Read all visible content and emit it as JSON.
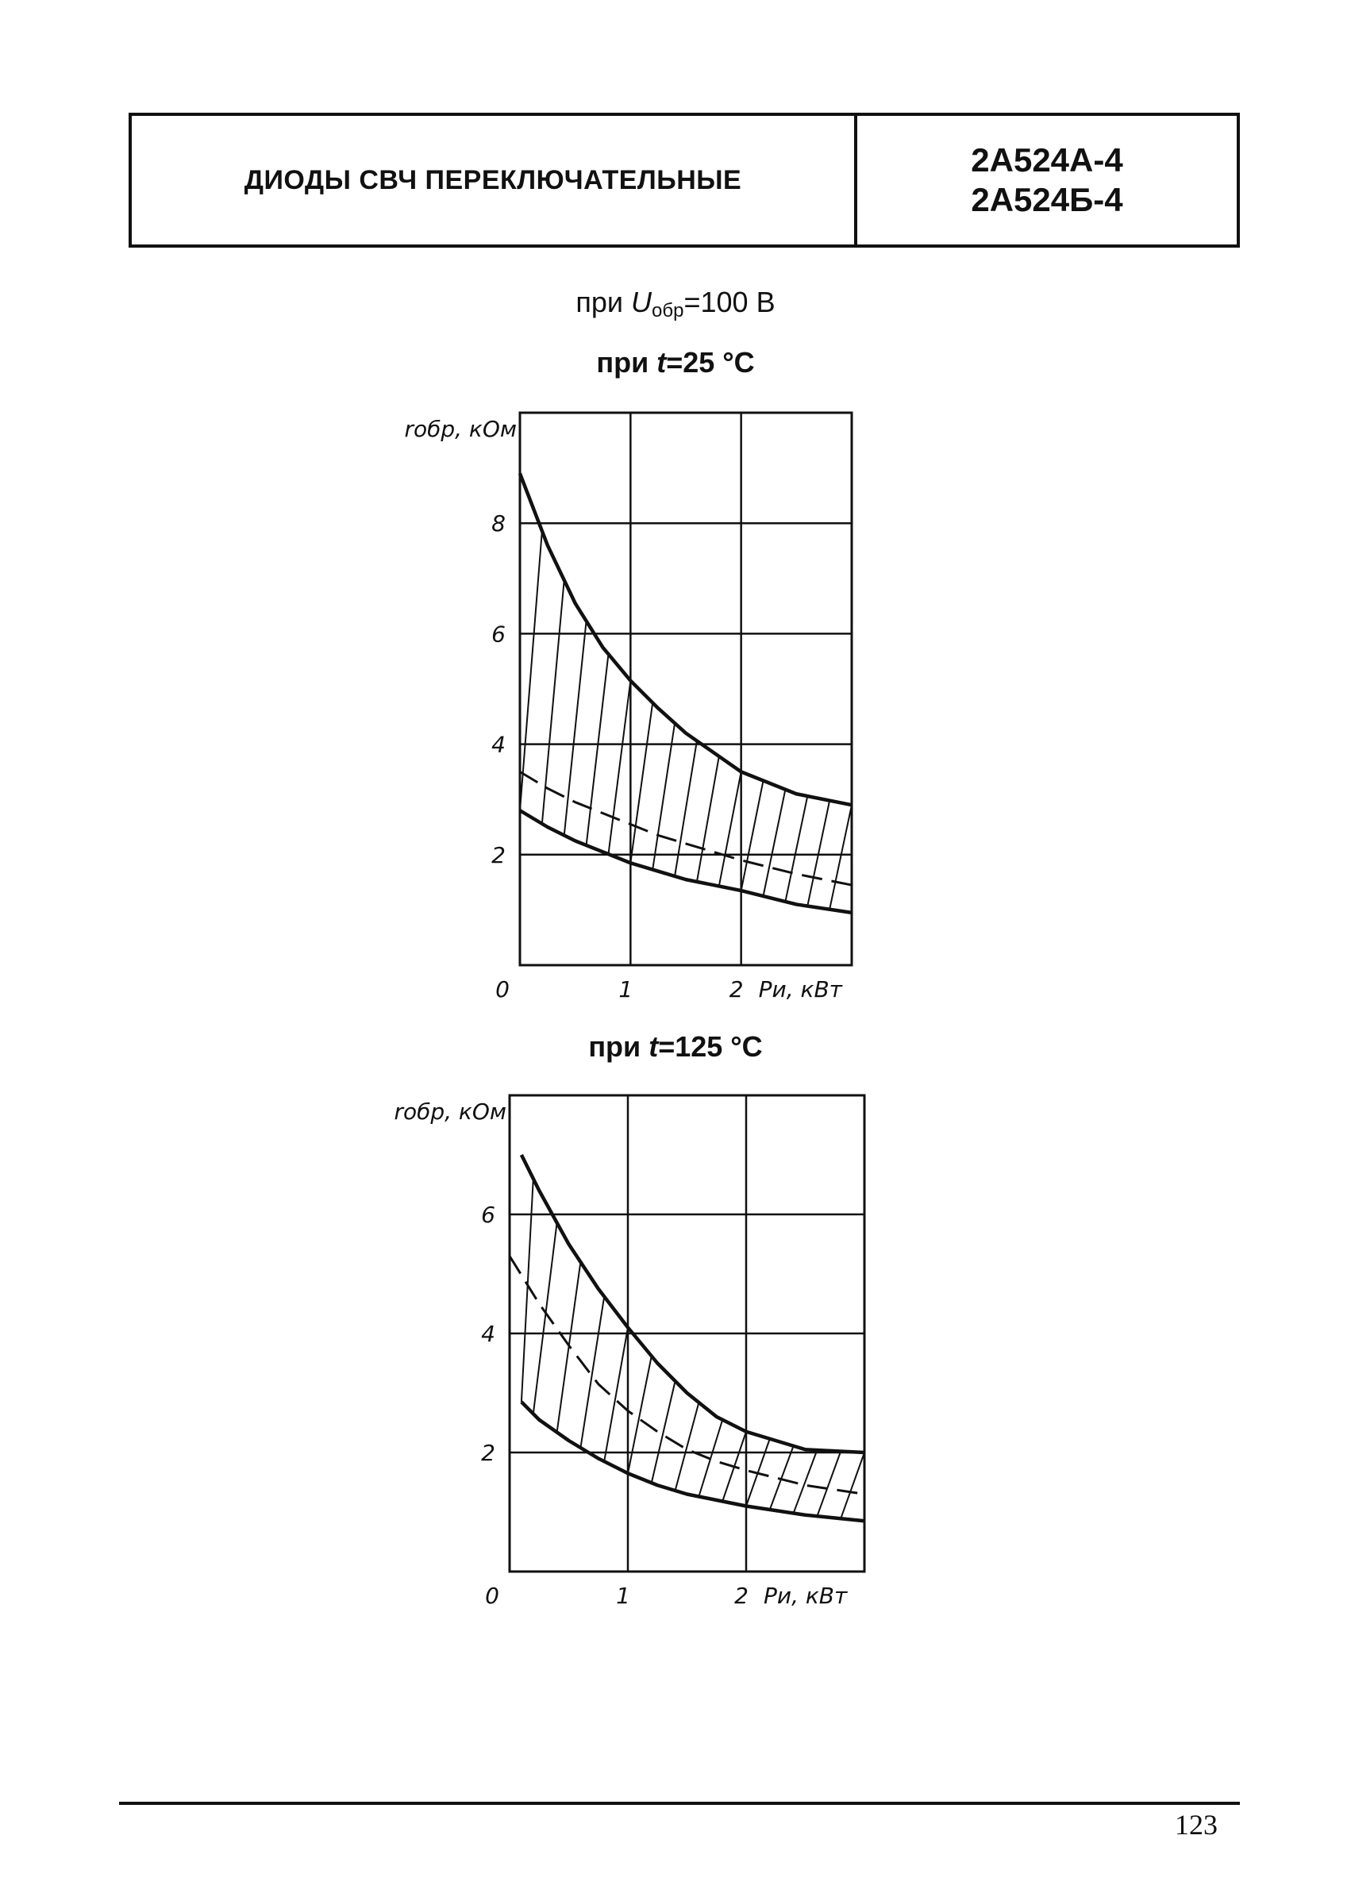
{
  "header": {
    "title": "ДИОДЫ СВЧ ПЕРЕКЛЮЧАТЕЛЬНЫЕ",
    "part1": "2А524А-4",
    "part2": "2А524Б-4"
  },
  "condition": {
    "prefix": "при ",
    "symbol": "U",
    "subscript": "обр",
    "suffix": "=100 В"
  },
  "chart_data": [
    {
      "type": "line",
      "title_prefix": "при ",
      "title_symbol": "t",
      "title_suffix": "=25 °C",
      "ylabel": "rобр, кОм",
      "xlabel": "Pи, кВт",
      "xlim": [
        0,
        3
      ],
      "ylim": [
        0,
        10
      ],
      "x_ticks": [
        "0",
        "1",
        "2"
      ],
      "y_ticks": [
        "2",
        "4",
        "6",
        "8"
      ],
      "grid": true,
      "hatched_region": "between upper and lower curves",
      "series": [
        {
          "style": "solid",
          "x": [
            0,
            0.25,
            0.5,
            0.75,
            1.0,
            1.25,
            1.5,
            1.75,
            2.0,
            2.5,
            3.0
          ],
          "y": [
            8.9,
            7.6,
            6.55,
            5.75,
            5.15,
            4.65,
            4.2,
            3.85,
            3.5,
            3.1,
            2.9
          ]
        },
        {
          "style": "dashed",
          "x": [
            0,
            0.25,
            0.5,
            0.75,
            1.0,
            1.25,
            1.5,
            1.75,
            2.0,
            2.5,
            3.0
          ],
          "y": [
            3.5,
            3.2,
            2.95,
            2.75,
            2.55,
            2.35,
            2.2,
            2.05,
            1.9,
            1.65,
            1.45
          ]
        },
        {
          "style": "solid",
          "x": [
            0,
            0.25,
            0.5,
            0.75,
            1.0,
            1.25,
            1.5,
            1.75,
            2.0,
            2.5,
            3.0
          ],
          "y": [
            2.8,
            2.5,
            2.25,
            2.05,
            1.85,
            1.7,
            1.55,
            1.45,
            1.35,
            1.1,
            0.95
          ]
        }
      ]
    },
    {
      "type": "line",
      "title_prefix": "при ",
      "title_symbol": "t",
      "title_suffix": "=125 °C",
      "ylabel": "rобр, кОм",
      "xlabel": "Pи, кВт",
      "xlim": [
        0,
        3
      ],
      "ylim": [
        0,
        8
      ],
      "x_ticks": [
        "0",
        "1",
        "2"
      ],
      "y_ticks": [
        "2",
        "4",
        "6"
      ],
      "grid": true,
      "hatched_region": "between upper and lower curves",
      "series": [
        {
          "style": "solid",
          "x": [
            0.1,
            0.25,
            0.5,
            0.75,
            1.0,
            1.25,
            1.5,
            1.75,
            2.0,
            2.5,
            3.0
          ],
          "y": [
            7.0,
            6.4,
            5.5,
            4.75,
            4.1,
            3.5,
            3.0,
            2.6,
            2.35,
            2.05,
            2.0
          ]
        },
        {
          "style": "dashed",
          "x": [
            0,
            0.25,
            0.5,
            0.75,
            1.0,
            1.25,
            1.5,
            1.75,
            2.0,
            2.5,
            3.0
          ],
          "y": [
            5.3,
            4.5,
            3.8,
            3.15,
            2.7,
            2.35,
            2.05,
            1.85,
            1.7,
            1.45,
            1.3
          ]
        },
        {
          "style": "solid",
          "x": [
            0.1,
            0.25,
            0.5,
            0.75,
            1.0,
            1.25,
            1.5,
            1.75,
            2.0,
            2.5,
            3.0
          ],
          "y": [
            2.85,
            2.55,
            2.2,
            1.9,
            1.65,
            1.45,
            1.3,
            1.2,
            1.1,
            0.95,
            0.85
          ]
        }
      ]
    }
  ],
  "page_number": "123"
}
